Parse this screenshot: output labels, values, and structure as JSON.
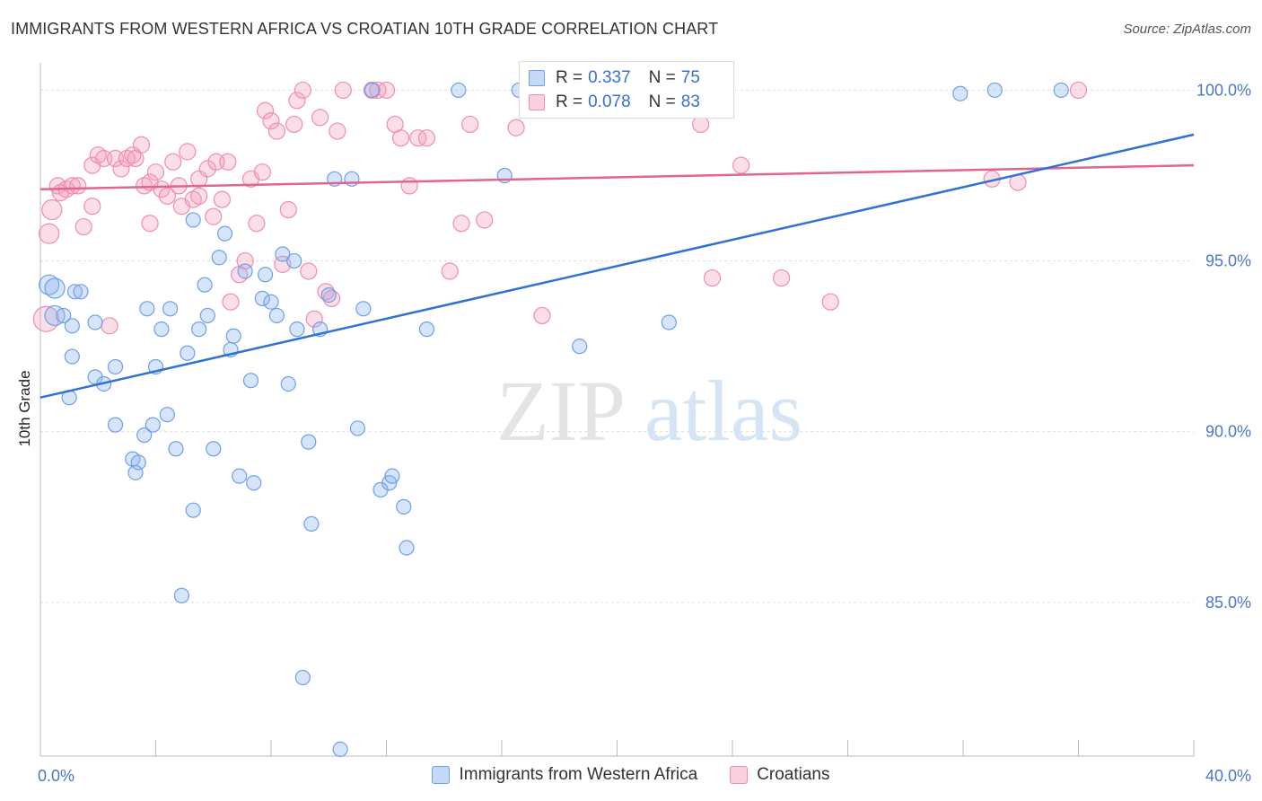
{
  "title": "IMMIGRANTS FROM WESTERN AFRICA VS CROATIAN 10TH GRADE CORRELATION CHART",
  "source": "Source: ZipAtlas.com",
  "watermark": {
    "zip": "ZIP",
    "atlas": "atlas"
  },
  "legend": {
    "rows": [
      {
        "r_label": "R =",
        "r_value": "0.337",
        "n_label": "N =",
        "n_value": "75"
      },
      {
        "r_label": "R =",
        "r_value": "0.078",
        "n_label": "N =",
        "n_value": "83"
      }
    ]
  },
  "chart_data": {
    "type": "scatter",
    "title": "IMMIGRANTS FROM WESTERN AFRICA VS CROATIAN 10TH GRADE CORRELATION CHART",
    "xlabel": "",
    "ylabel": "10th Grade",
    "xlim": [
      0,
      40
    ],
    "ylim": [
      80.5,
      100.8
    ],
    "x_tick_labels": [
      "0.0%",
      "40.0%"
    ],
    "y_ticks": [
      85,
      90,
      95,
      100
    ],
    "y_tick_labels": [
      "85.0%",
      "90.0%",
      "95.0%",
      "100.0%"
    ],
    "grid": true,
    "colors": {
      "blue": "#6f9fe6",
      "blue_line": "#2f72cf",
      "pink": "#f08db0",
      "pink_line": "#e0658f"
    },
    "series": [
      {
        "name": "Immigrants from Western Africa",
        "R": 0.337,
        "N": 75,
        "trend": {
          "x": [
            0,
            40
          ],
          "y": [
            91.0,
            98.7
          ]
        },
        "points": [
          [
            0.3,
            94.3
          ],
          [
            0.5,
            94.2
          ],
          [
            0.5,
            93.4
          ],
          [
            0.8,
            93.4
          ],
          [
            1.1,
            93.1
          ],
          [
            1.2,
            94.1
          ],
          [
            1.4,
            94.1
          ],
          [
            1.0,
            91.0
          ],
          [
            1.1,
            92.2
          ],
          [
            1.9,
            93.2
          ],
          [
            1.9,
            91.6
          ],
          [
            2.2,
            91.4
          ],
          [
            2.6,
            91.9
          ],
          [
            2.6,
            90.2
          ],
          [
            3.2,
            89.2
          ],
          [
            3.3,
            88.8
          ],
          [
            3.4,
            89.1
          ],
          [
            3.6,
            89.9
          ],
          [
            3.7,
            93.6
          ],
          [
            3.9,
            90.2
          ],
          [
            4.0,
            91.9
          ],
          [
            4.2,
            93.0
          ],
          [
            4.4,
            90.5
          ],
          [
            4.5,
            93.6
          ],
          [
            4.7,
            89.5
          ],
          [
            4.9,
            85.2
          ],
          [
            5.1,
            92.3
          ],
          [
            5.3,
            96.2
          ],
          [
            5.3,
            87.7
          ],
          [
            5.5,
            93.0
          ],
          [
            5.7,
            94.3
          ],
          [
            5.8,
            93.4
          ],
          [
            6.0,
            89.5
          ],
          [
            6.2,
            95.1
          ],
          [
            6.4,
            95.8
          ],
          [
            6.6,
            92.4
          ],
          [
            6.7,
            92.8
          ],
          [
            6.9,
            88.7
          ],
          [
            7.1,
            94.7
          ],
          [
            7.3,
            91.5
          ],
          [
            7.4,
            88.5
          ],
          [
            7.7,
            93.9
          ],
          [
            7.8,
            94.6
          ],
          [
            8.0,
            93.8
          ],
          [
            8.2,
            93.4
          ],
          [
            8.4,
            95.2
          ],
          [
            8.6,
            91.4
          ],
          [
            8.8,
            95.0
          ],
          [
            8.9,
            93.0
          ],
          [
            9.1,
            82.8
          ],
          [
            9.3,
            89.7
          ],
          [
            9.4,
            87.3
          ],
          [
            9.7,
            93.0
          ],
          [
            10.0,
            94.0
          ],
          [
            10.2,
            97.4
          ],
          [
            10.4,
            80.7
          ],
          [
            10.8,
            97.4
          ],
          [
            11.0,
            90.1
          ],
          [
            11.2,
            93.6
          ],
          [
            11.5,
            100.0
          ],
          [
            11.8,
            88.3
          ],
          [
            12.1,
            88.5
          ],
          [
            12.2,
            88.7
          ],
          [
            12.6,
            87.8
          ],
          [
            12.7,
            86.6
          ],
          [
            13.4,
            93.0
          ],
          [
            14.5,
            100.0
          ],
          [
            16.1,
            97.5
          ],
          [
            16.6,
            100.0
          ],
          [
            17.9,
            100.0
          ],
          [
            18.7,
            92.5
          ],
          [
            21.8,
            93.2
          ],
          [
            33.1,
            100.0
          ],
          [
            35.4,
            100.0
          ],
          [
            31.9,
            99.9
          ]
        ]
      },
      {
        "name": "Croatians",
        "R": 0.078,
        "N": 83,
        "trend": {
          "x": [
            0,
            40
          ],
          "y": [
            97.1,
            97.8
          ]
        },
        "points": [
          [
            0.2,
            93.3
          ],
          [
            0.3,
            95.8
          ],
          [
            0.4,
            96.5
          ],
          [
            0.6,
            97.2
          ],
          [
            0.7,
            97.0
          ],
          [
            0.9,
            97.1
          ],
          [
            1.1,
            97.2
          ],
          [
            1.3,
            97.2
          ],
          [
            1.5,
            96.0
          ],
          [
            1.8,
            96.6
          ],
          [
            1.8,
            97.8
          ],
          [
            2.0,
            98.1
          ],
          [
            2.2,
            98.0
          ],
          [
            2.4,
            93.1
          ],
          [
            2.6,
            98.0
          ],
          [
            2.8,
            97.7
          ],
          [
            3.0,
            98.0
          ],
          [
            3.2,
            98.1
          ],
          [
            3.3,
            98.0
          ],
          [
            3.5,
            98.4
          ],
          [
            3.6,
            97.2
          ],
          [
            3.8,
            96.1
          ],
          [
            4.0,
            97.6
          ],
          [
            4.2,
            97.1
          ],
          [
            4.4,
            96.9
          ],
          [
            4.6,
            97.9
          ],
          [
            4.8,
            97.2
          ],
          [
            4.9,
            96.6
          ],
          [
            5.1,
            98.2
          ],
          [
            5.3,
            96.8
          ],
          [
            5.5,
            97.4
          ],
          [
            5.8,
            97.7
          ],
          [
            6.0,
            96.3
          ],
          [
            6.1,
            97.9
          ],
          [
            6.3,
            96.8
          ],
          [
            6.5,
            97.9
          ],
          [
            6.6,
            93.8
          ],
          [
            6.9,
            94.6
          ],
          [
            7.1,
            95.0
          ],
          [
            7.3,
            97.4
          ],
          [
            7.5,
            96.1
          ],
          [
            7.7,
            97.6
          ],
          [
            7.8,
            99.4
          ],
          [
            8.0,
            99.1
          ],
          [
            8.2,
            98.8
          ],
          [
            8.4,
            94.9
          ],
          [
            8.6,
            96.5
          ],
          [
            8.8,
            99.0
          ],
          [
            8.9,
            99.7
          ],
          [
            9.1,
            100.0
          ],
          [
            9.3,
            94.7
          ],
          [
            9.5,
            93.3
          ],
          [
            9.7,
            99.2
          ],
          [
            9.9,
            94.1
          ],
          [
            10.1,
            93.9
          ],
          [
            10.3,
            98.8
          ],
          [
            10.5,
            100.0
          ],
          [
            11.5,
            100.0
          ],
          [
            11.7,
            100.0
          ],
          [
            12.0,
            100.0
          ],
          [
            12.3,
            99.0
          ],
          [
            12.5,
            98.6
          ],
          [
            12.8,
            97.2
          ],
          [
            13.1,
            98.6
          ],
          [
            13.4,
            98.6
          ],
          [
            14.2,
            94.7
          ],
          [
            14.6,
            96.1
          ],
          [
            14.9,
            99.0
          ],
          [
            15.4,
            96.2
          ],
          [
            16.5,
            98.9
          ],
          [
            17.4,
            93.4
          ],
          [
            18.3,
            100.0
          ],
          [
            22.7,
            100.0
          ],
          [
            22.9,
            99.0
          ],
          [
            23.3,
            94.5
          ],
          [
            24.3,
            97.8
          ],
          [
            25.7,
            94.5
          ],
          [
            27.4,
            93.8
          ],
          [
            33.0,
            97.4
          ],
          [
            33.9,
            97.3
          ],
          [
            36.0,
            100.0
          ],
          [
            3.8,
            97.3
          ],
          [
            5.5,
            96.9
          ]
        ]
      }
    ]
  }
}
